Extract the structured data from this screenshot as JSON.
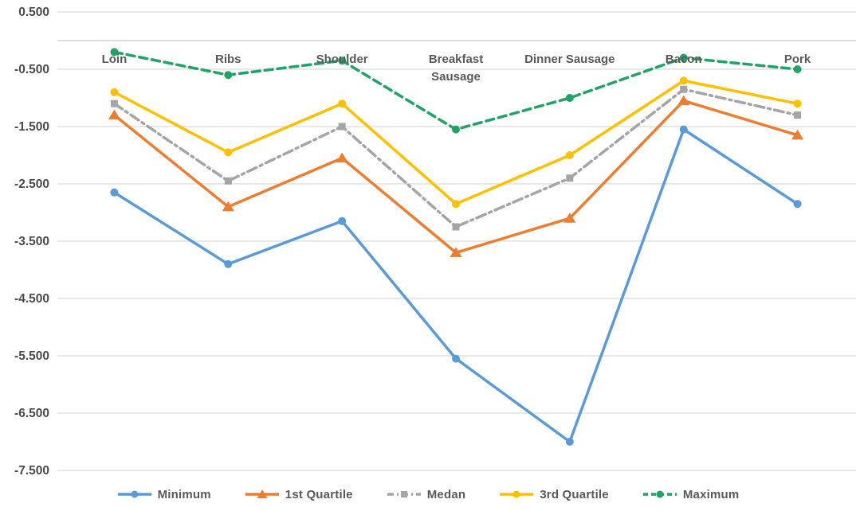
{
  "chart_data": {
    "type": "line",
    "title": "",
    "categories": [
      "Loin",
      "Ribs",
      "Shoulder",
      "Breakfast\nSausage",
      "Dinner Sausage",
      "Bacon",
      "Pork"
    ],
    "series": [
      {
        "name": "Minimum",
        "color": "#5B9BD5",
        "line_style": "solid",
        "marker": "circle",
        "values": [
          -2.65,
          -3.9,
          -3.15,
          -5.55,
          -7.0,
          -1.55,
          -2.85
        ]
      },
      {
        "name": "1st Quartile",
        "color": "#ED7D31",
        "line_style": "solid",
        "marker": "triangle",
        "values": [
          -1.3,
          -2.9,
          -2.05,
          -3.7,
          -3.1,
          -1.05,
          -1.65
        ]
      },
      {
        "name": "Medan",
        "color": "#A5A5A5",
        "line_style": "dashdot",
        "marker": "square",
        "values": [
          -1.1,
          -2.45,
          -1.5,
          -3.25,
          -2.4,
          -0.85,
          -1.3
        ]
      },
      {
        "name": "3rd Quartile",
        "color": "#FFC000",
        "line_style": "solid",
        "marker": "circle",
        "values": [
          -0.9,
          -1.95,
          -1.1,
          -2.85,
          -2.0,
          -0.7,
          -1.1
        ]
      },
      {
        "name": "Maximum",
        "color": "#21A366",
        "line_style": "dashed",
        "marker": "circle",
        "values": [
          -0.2,
          -0.6,
          -0.35,
          -1.55,
          -1.0,
          -0.3,
          -0.5
        ]
      }
    ],
    "y_axis": {
      "min": -7.5,
      "max": 0.5,
      "step": 1.0,
      "tick_labels": [
        "0.500",
        "-0.500",
        "-1.500",
        "-2.500",
        "-3.500",
        "-4.500",
        "-5.500",
        "-6.500",
        "-7.500"
      ]
    },
    "grid": true,
    "zero_axis_line": true,
    "legend_position": "bottom",
    "style": {
      "background": "#FFFFFF",
      "gridline_color": "#D9D9D9",
      "zero_line_color": "#C9C9C9",
      "tick_label_color": "#4A4A4A",
      "category_label_color": "#595959",
      "legend_text_color": "#595959"
    }
  }
}
